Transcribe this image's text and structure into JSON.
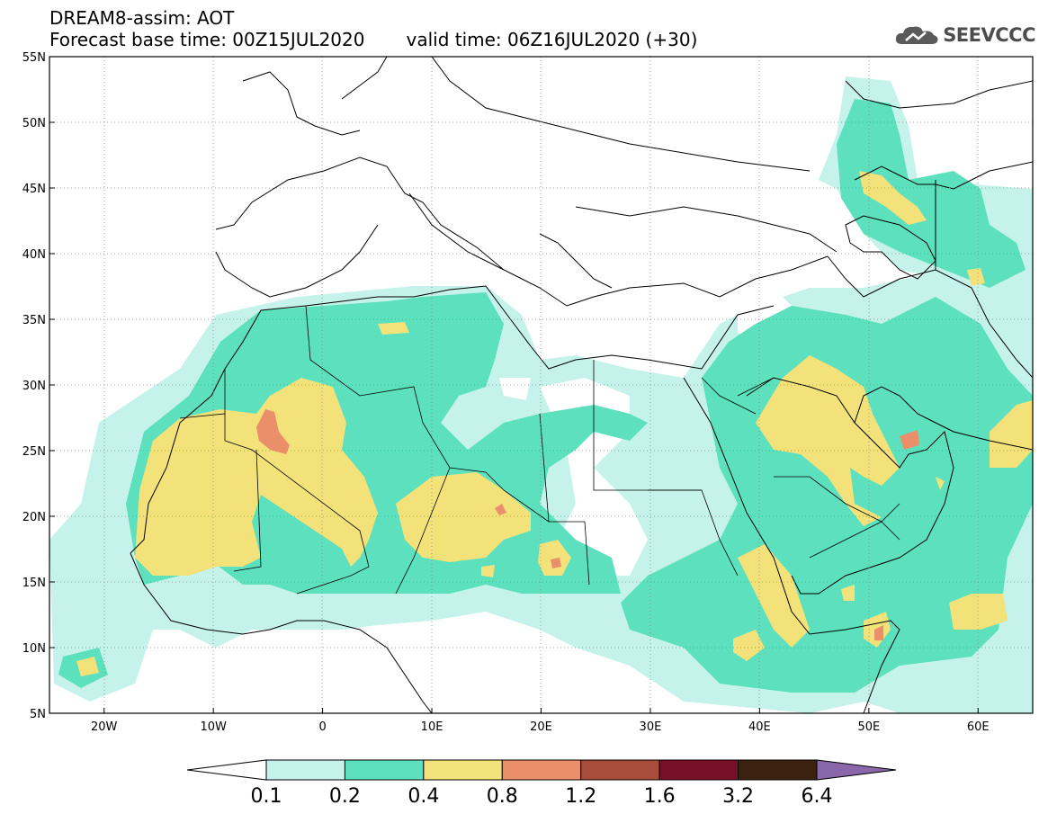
{
  "header": {
    "title_line1": "DREAM8-assim: AOT",
    "base_time": "Forecast base time: 00Z15JUL2020",
    "valid_time": "valid time: 06Z16JUL2020 (+30)"
  },
  "logo": {
    "text": "SEEVCCC",
    "icon": "cloud-logo-icon"
  },
  "map": {
    "lon_range": [
      -25,
      65
    ],
    "lat_range": [
      5,
      55
    ],
    "lat_ticks": [
      "55N",
      "50N",
      "45N",
      "40N",
      "35N",
      "30N",
      "25N",
      "20N",
      "15N",
      "10N",
      "5N"
    ],
    "lon_ticks": [
      "20W",
      "10W",
      "0",
      "10E",
      "20E",
      "30E",
      "40E",
      "50E",
      "60E"
    ],
    "gridlines": "dotted"
  },
  "colorbar": {
    "labels": [
      "0.1",
      "0.2",
      "0.4",
      "0.8",
      "1.2",
      "1.6",
      "3.2",
      "6.4"
    ],
    "colors": [
      "#c5f2ea",
      "#5ce0bd",
      "#f3e27a",
      "#eb8e6a",
      "#a84c3c",
      "#78102a",
      "#3b2210",
      "#8a67a8"
    ],
    "under_color": "#ffffff",
    "over_color": "#8a67a8"
  }
}
